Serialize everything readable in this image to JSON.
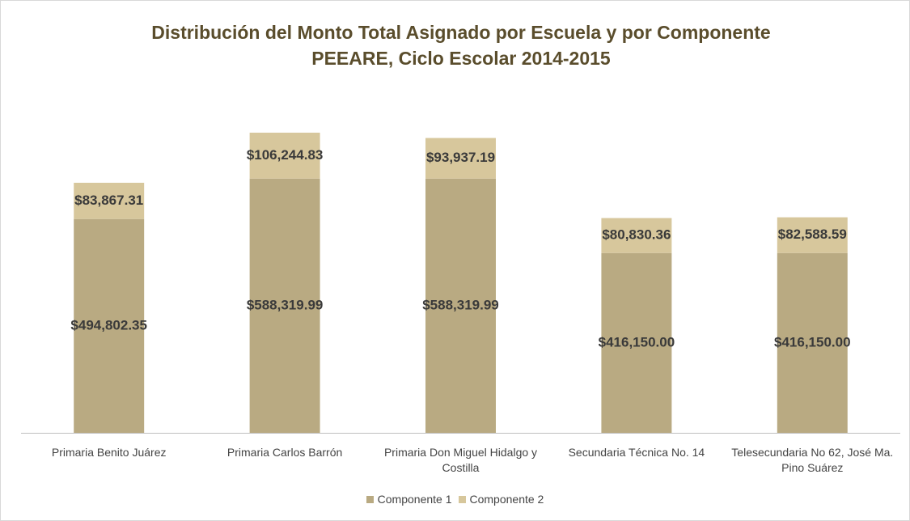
{
  "chart_data": {
    "type": "stacked_bar",
    "title": "Distribución del Monto Total Asignado por Escuela y por Componente",
    "subtitle": "PEEARE, Ciclo Escolar 2014-2015",
    "categories": [
      "Primaria Benito Juárez",
      "Primaria Carlos Barrón",
      "Primaria Don Miguel Hidalgo y Costilla",
      "Secundaria Técnica No. 14",
      "Telesecundaria No 62, José Ma. Pino Suárez"
    ],
    "series": [
      {
        "name": "Componente 1",
        "color": "#b9aa82",
        "values": [
          494802.35,
          588319.99,
          588319.99,
          416150.0,
          416150.0
        ],
        "value_labels": [
          "$494,802.35",
          "$588,319.99",
          "$588,319.99",
          "$416,150.00",
          "$416,150.00"
        ]
      },
      {
        "name": "Componente 2",
        "color": "#d7c79c",
        "values": [
          83867.31,
          106244.83,
          93937.19,
          80830.36,
          82588.59
        ],
        "value_labels": [
          "$83,867.31",
          "$106,244.83",
          "$93,937.19",
          "$80,830.36",
          "$82,588.59"
        ]
      }
    ],
    "legend": "bottom"
  }
}
